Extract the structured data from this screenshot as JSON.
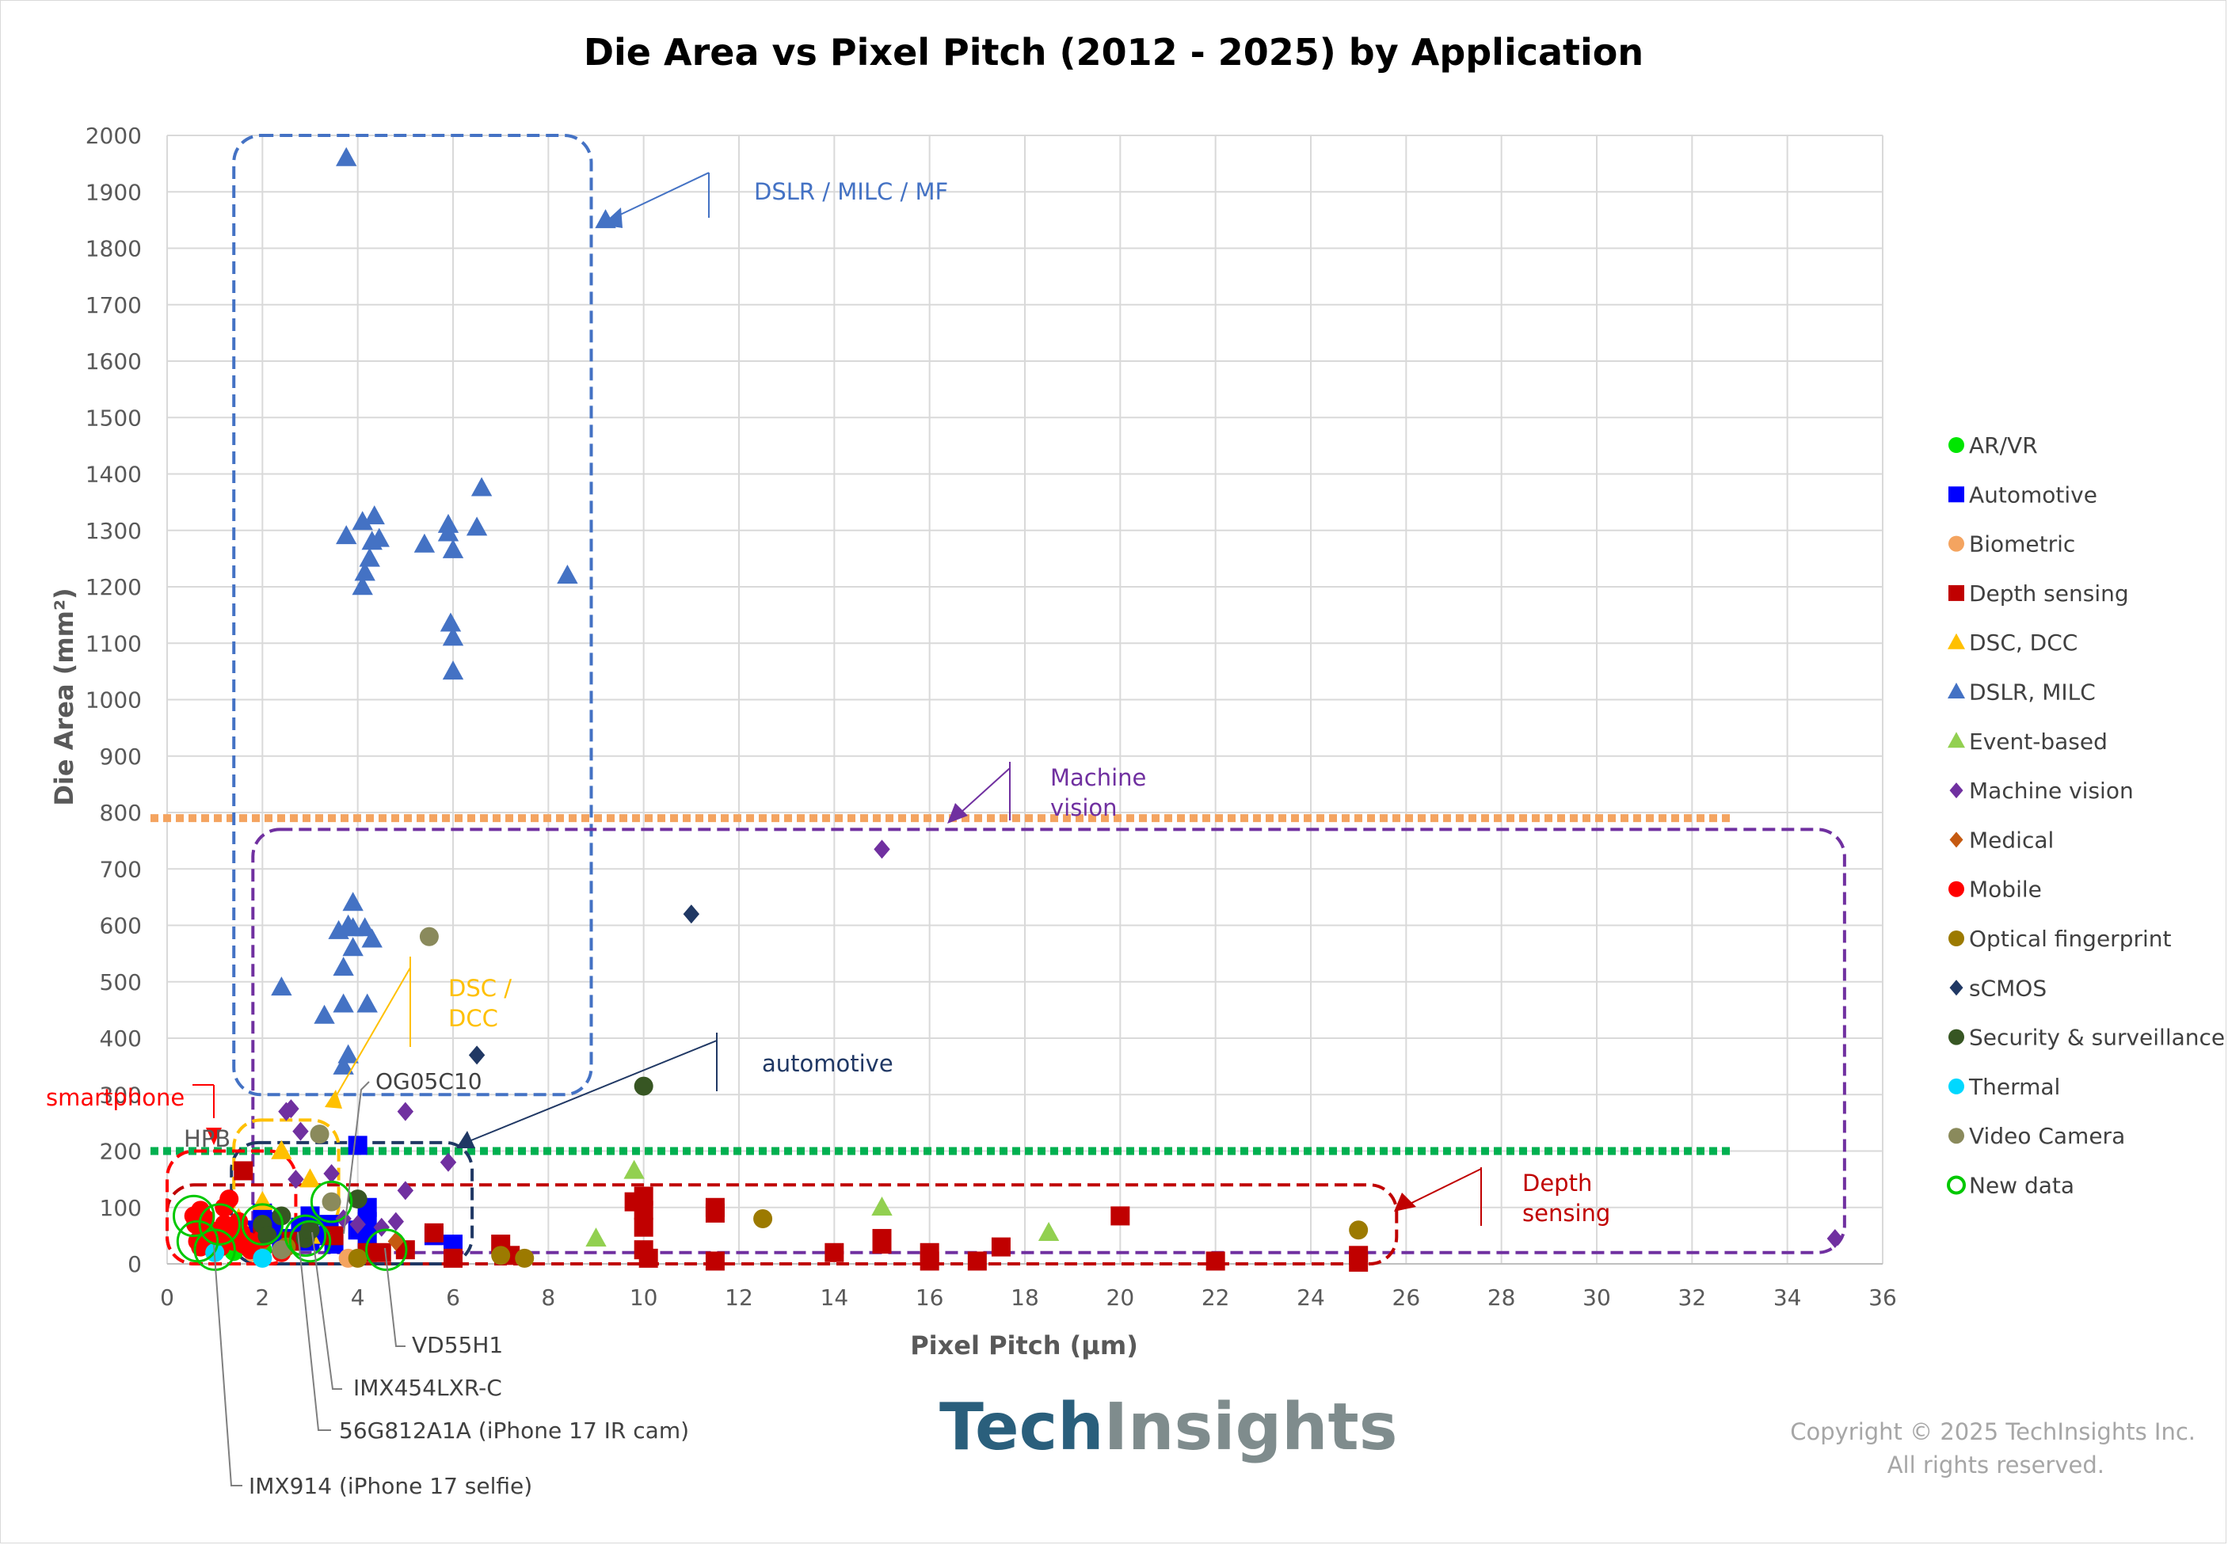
{
  "chart_data": {
    "type": "scatter",
    "title": "Die Area vs Pixel Pitch (2012 - 2025) by Application",
    "xlabel": "Pixel Pitch (µm)",
    "ylabel": "Die Area (mm²)",
    "xlim": [
      0,
      36
    ],
    "ylim": [
      0,
      2000
    ],
    "xticks": [
      0,
      2,
      4,
      6,
      8,
      10,
      12,
      14,
      16,
      18,
      20,
      22,
      24,
      26,
      28,
      30,
      32,
      34,
      36
    ],
    "yticks": [
      0,
      100,
      200,
      300,
      400,
      500,
      600,
      700,
      800,
      900,
      1000,
      1100,
      1200,
      1300,
      1400,
      1500,
      1600,
      1700,
      1800,
      1900,
      2000
    ],
    "grid": true,
    "legend_position": "right",
    "series": [
      {
        "name": "AR/VR",
        "marker": "circle",
        "color": "#00e600",
        "points": [
          [
            1.0,
            30
          ],
          [
            1.4,
            22
          ],
          [
            2.0,
            25
          ]
        ]
      },
      {
        "name": "Automotive",
        "marker": "square",
        "color": "#0000ff",
        "points": [
          [
            1.8,
            60
          ],
          [
            2.0,
            90
          ],
          [
            2.1,
            75
          ],
          [
            2.2,
            55
          ],
          [
            2.4,
            45
          ],
          [
            2.8,
            65
          ],
          [
            3.0,
            85
          ],
          [
            3.0,
            40
          ],
          [
            3.2,
            50
          ],
          [
            3.4,
            70
          ],
          [
            3.5,
            35
          ],
          [
            4.0,
            210
          ],
          [
            4.0,
            60
          ],
          [
            4.2,
            45
          ],
          [
            4.2,
            75
          ],
          [
            4.2,
            100
          ],
          [
            5.6,
            50
          ],
          [
            6.0,
            35
          ]
        ]
      },
      {
        "name": "Biometric",
        "marker": "circle",
        "color": "#f4a460",
        "points": [
          [
            1.8,
            20
          ],
          [
            3.8,
            10
          ]
        ]
      },
      {
        "name": "Depth sensing",
        "marker": "square",
        "color": "#c00000",
        "points": [
          [
            1.6,
            165
          ],
          [
            1.8,
            30
          ],
          [
            2.0,
            55
          ],
          [
            2.6,
            40
          ],
          [
            3.5,
            50
          ],
          [
            4.2,
            20
          ],
          [
            4.5,
            20
          ],
          [
            5.0,
            25
          ],
          [
            5.6,
            55
          ],
          [
            6.0,
            10
          ],
          [
            7.0,
            35
          ],
          [
            7.2,
            15
          ],
          [
            9.8,
            110
          ],
          [
            10.0,
            120
          ],
          [
            10.0,
            95
          ],
          [
            10.0,
            65
          ],
          [
            10.0,
            25
          ],
          [
            10.1,
            10
          ],
          [
            11.5,
            100
          ],
          [
            11.5,
            90
          ],
          [
            11.5,
            5
          ],
          [
            14.0,
            20
          ],
          [
            15.0,
            45
          ],
          [
            15.0,
            35
          ],
          [
            16.0,
            20
          ],
          [
            16.0,
            5
          ],
          [
            17.0,
            5
          ],
          [
            17.5,
            30
          ],
          [
            20.0,
            85
          ],
          [
            22.0,
            5
          ],
          [
            25.0,
            15
          ],
          [
            25.0,
            3
          ]
        ]
      },
      {
        "name": "DSC, DCC",
        "marker": "triangle",
        "color": "#ffc000",
        "points": [
          [
            1.5,
            80
          ],
          [
            2.0,
            110
          ],
          [
            2.4,
            200
          ],
          [
            3.0,
            150
          ],
          [
            3.0,
            50
          ]
        ]
      },
      {
        "name": "DSLR, MILC",
        "marker": "triangle",
        "color": "#4472c4",
        "points": [
          [
            3.76,
            1960
          ],
          [
            3.76,
            1290
          ],
          [
            4.1,
            1315
          ],
          [
            4.35,
            1325
          ],
          [
            4.3,
            1280
          ],
          [
            4.45,
            1285
          ],
          [
            4.25,
            1250
          ],
          [
            4.15,
            1225
          ],
          [
            4.1,
            1200
          ],
          [
            5.4,
            1275
          ],
          [
            5.9,
            1310
          ],
          [
            5.9,
            1295
          ],
          [
            6.0,
            1265
          ],
          [
            6.5,
            1305
          ],
          [
            6.6,
            1375
          ],
          [
            5.95,
            1135
          ],
          [
            6.0,
            1110
          ],
          [
            6.0,
            1050
          ],
          [
            8.4,
            1220
          ],
          [
            9.2,
            1850
          ],
          [
            2.4,
            490
          ],
          [
            3.3,
            440
          ],
          [
            3.7,
            460
          ],
          [
            3.7,
            525
          ],
          [
            3.6,
            590
          ],
          [
            3.8,
            600
          ],
          [
            3.9,
            595
          ],
          [
            3.9,
            640
          ],
          [
            3.9,
            560
          ],
          [
            4.15,
            595
          ],
          [
            4.3,
            575
          ],
          [
            4.2,
            460
          ],
          [
            3.8,
            370
          ],
          [
            3.7,
            350
          ]
        ]
      },
      {
        "name": "Event-based",
        "marker": "triangle",
        "color": "#92d050",
        "points": [
          [
            9.0,
            45
          ],
          [
            9.8,
            165
          ],
          [
            15.0,
            100
          ],
          [
            18.5,
            55
          ]
        ]
      },
      {
        "name": "Machine vision",
        "marker": "diamond",
        "color": "#7030a0",
        "points": [
          [
            2.5,
            270
          ],
          [
            2.6,
            275
          ],
          [
            2.8,
            235
          ],
          [
            2.7,
            150
          ],
          [
            3.45,
            160
          ],
          [
            3.7,
            80
          ],
          [
            4.0,
            70
          ],
          [
            4.5,
            65
          ],
          [
            4.8,
            75
          ],
          [
            5.0,
            270
          ],
          [
            5.0,
            130
          ],
          [
            5.9,
            180
          ],
          [
            15.0,
            735
          ],
          [
            35.0,
            45
          ]
        ]
      },
      {
        "name": "Medical",
        "marker": "diamond",
        "color": "#c55a11",
        "points": [
          [
            2.0,
            35
          ],
          [
            4.8,
            40
          ]
        ]
      },
      {
        "name": "Mobile",
        "marker": "circle",
        "color": "#ff0000",
        "points": [
          [
            0.56,
            85
          ],
          [
            0.6,
            70
          ],
          [
            0.7,
            95
          ],
          [
            0.8,
            80
          ],
          [
            0.64,
            40
          ],
          [
            0.7,
            30
          ],
          [
            0.8,
            50
          ],
          [
            0.9,
            60
          ],
          [
            1.0,
            45
          ],
          [
            1.0,
            35
          ],
          [
            1.12,
            30
          ],
          [
            1.2,
            70
          ],
          [
            1.2,
            100
          ],
          [
            1.22,
            60
          ],
          [
            1.3,
            115
          ],
          [
            1.4,
            50
          ],
          [
            1.4,
            40
          ],
          [
            1.5,
            75
          ],
          [
            1.55,
            55
          ],
          [
            1.6,
            35
          ],
          [
            1.7,
            40
          ],
          [
            1.75,
            25
          ],
          [
            2.0,
            45
          ],
          [
            2.4,
            20
          ]
        ]
      },
      {
        "name": "Optical fingerprint",
        "marker": "circle",
        "color": "#9c7a00",
        "points": [
          [
            4.0,
            10
          ],
          [
            7.0,
            15
          ],
          [
            7.5,
            10
          ],
          [
            12.5,
            80
          ],
          [
            25.0,
            60
          ],
          [
            2.5,
            30
          ]
        ]
      },
      {
        "name": "sCMOS",
        "marker": "diamond",
        "color": "#203864",
        "points": [
          [
            6.5,
            370
          ],
          [
            11.0,
            620
          ]
        ]
      },
      {
        "name": "Security & surveillance",
        "marker": "circle",
        "color": "#375623",
        "points": [
          [
            2.0,
            70
          ],
          [
            2.1,
            50
          ],
          [
            2.4,
            85
          ],
          [
            2.9,
            45
          ],
          [
            3.0,
            60
          ],
          [
            4.0,
            115
          ],
          [
            10.0,
            315
          ]
        ]
      },
      {
        "name": "Thermal",
        "marker": "circle",
        "color": "#00d8ff",
        "points": [
          [
            1.0,
            20
          ],
          [
            2.0,
            10
          ]
        ]
      },
      {
        "name": "Video Camera",
        "marker": "circle",
        "color": "#8a8a5c",
        "points": [
          [
            5.5,
            580
          ],
          [
            3.2,
            230
          ],
          [
            2.4,
            25
          ],
          [
            3.45,
            110
          ]
        ]
      },
      {
        "name": "New data",
        "marker": "ring",
        "color": "#00c800",
        "points": [
          [
            0.56,
            85
          ],
          [
            0.64,
            40
          ],
          [
            1.1,
            70
          ],
          [
            1.0,
            25
          ],
          [
            2.0,
            70
          ],
          [
            3.0,
            40
          ],
          [
            2.9,
            50
          ],
          [
            3.45,
            110
          ],
          [
            4.6,
            25
          ]
        ]
      }
    ],
    "reference_lines": [
      {
        "y": 790,
        "color": "#f4a460"
      },
      {
        "y": 200,
        "color": "#00b050"
      }
    ],
    "regions": [
      {
        "label": "DSLR / MILC / MF",
        "color": "#4472c4",
        "x": [
          1.4,
          8.9
        ],
        "y": [
          300,
          2000
        ]
      },
      {
        "label": "Machine vision",
        "color": "#7030a0",
        "x": [
          1.8,
          35.2
        ],
        "y": [
          20,
          770
        ]
      },
      {
        "label": "Depth sensing",
        "color": "#c00000",
        "x": [
          0.0,
          25.8
        ],
        "y": [
          0,
          140
        ]
      },
      {
        "label": "automotive",
        "color": "#203864",
        "x": [
          1.35,
          6.4
        ],
        "y": [
          0,
          215
        ]
      },
      {
        "label": "DSC / DCC",
        "color": "#ffc000",
        "x": [
          1.4,
          3.6
        ],
        "y": [
          55,
          255
        ]
      },
      {
        "label": "smartphone",
        "color": "#ff0000",
        "x": [
          0.0,
          2.7
        ],
        "y": [
          0,
          200
        ]
      }
    ],
    "annotations": [
      {
        "text": "DSLR / MILC / MF",
        "color": "#4472c4"
      },
      {
        "text": "Machine vision",
        "color": "#7030a0"
      },
      {
        "text": "DSC / DCC",
        "color": "#ffc000"
      },
      {
        "text": "automotive",
        "color": "#203864"
      },
      {
        "text": "Depth sensing",
        "color": "#c00000"
      },
      {
        "text": "smartphone",
        "color": "#ff0000"
      },
      {
        "text": "HPB",
        "color": "#595959"
      }
    ],
    "callouts": [
      "OG05C10",
      "VD55H1",
      "IMX454LXR-C",
      "56G812A1A (iPhone 17 IR cam)",
      "IMX914 (iPhone 17 selfie)"
    ]
  },
  "branding": {
    "logo_part1": "Tech",
    "logo_part2": "Insights",
    "copyright_line1": "Copyright © 2025 TechInsights Inc.",
    "copyright_line2": "All rights reserved."
  }
}
